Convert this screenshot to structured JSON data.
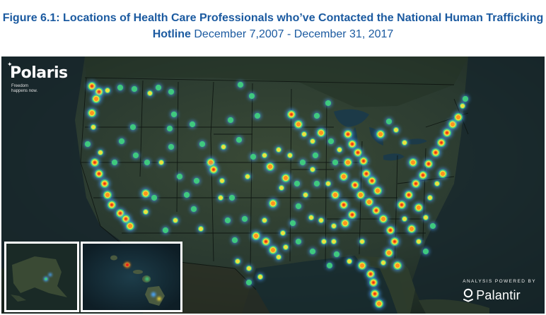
{
  "figure": {
    "title_bold_line1": "Figure 6.1: Locations of Health Care Professionals who’ve Contacted the National Human Trafficking",
    "title_bold_line2": "Hotline",
    "title_dates": "December 7,2007 - December 31, 2017"
  },
  "map": {
    "logo_name": "Polaris",
    "logo_tagline": "Freedom happens now.",
    "credit_label": "ANALYSIS POWERED BY",
    "credit_brand": "Palantir",
    "icon": "polaris-star-icon",
    "heat_colors": {
      "low": "#4aa6ff",
      "mid_low": "#3fd17a",
      "mid": "#ffe23a",
      "high": "#ff8a1c",
      "very_high": "#e8231a"
    }
  }
}
